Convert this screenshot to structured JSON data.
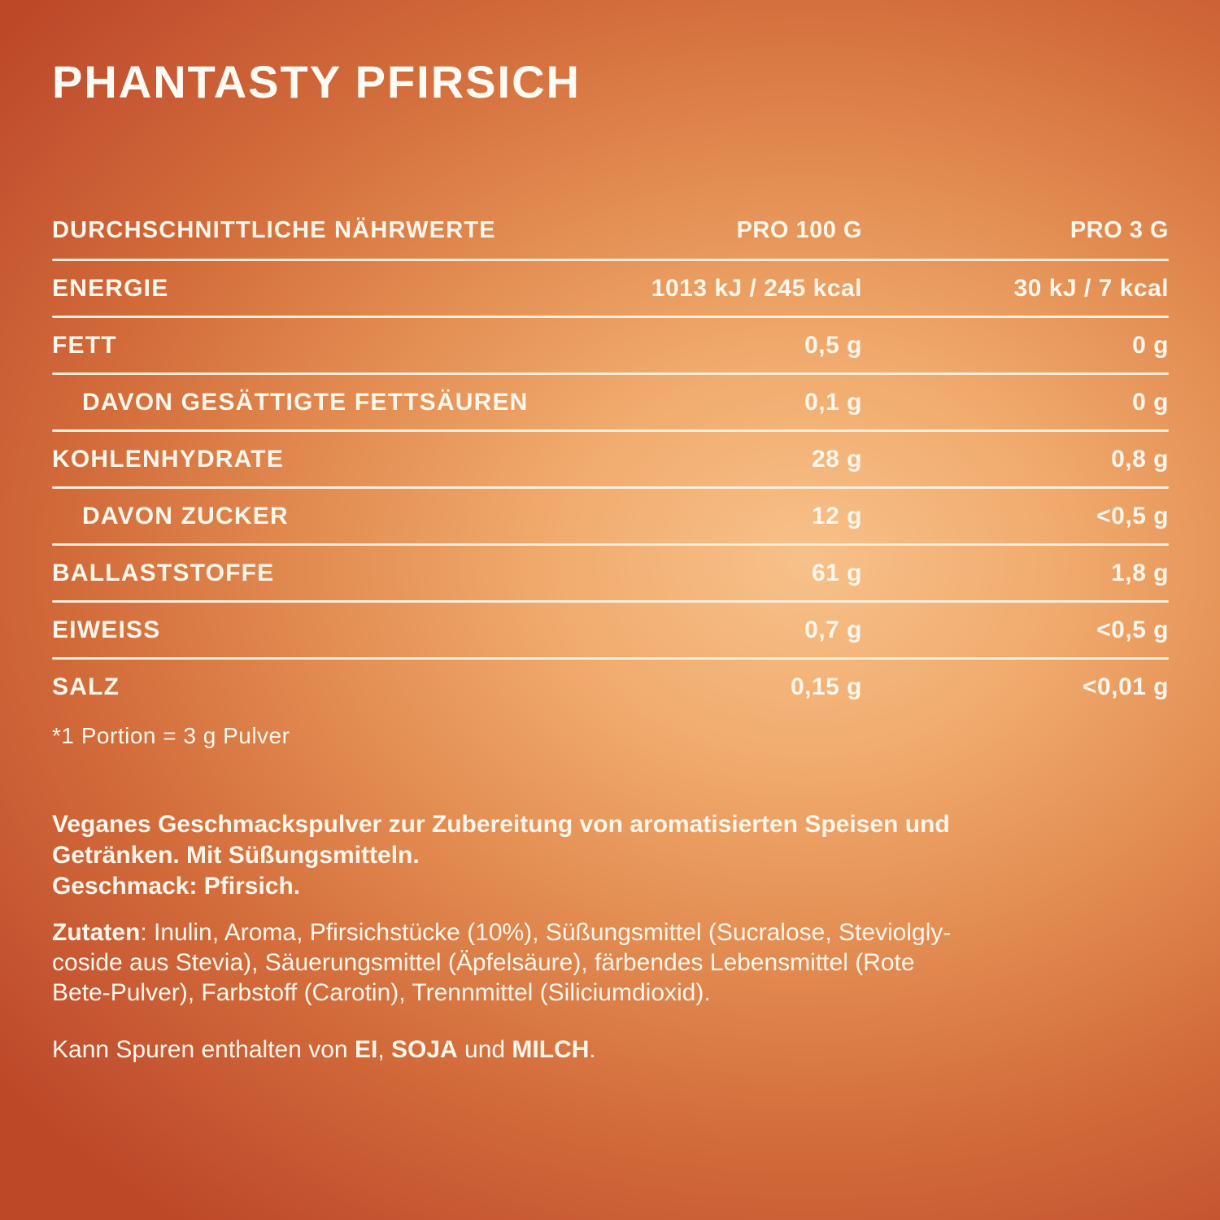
{
  "page": {
    "title": "PHANTASTY PFIRSICH"
  },
  "colors": {
    "background_center": "#F7C189",
    "background_edge": "#BC4828",
    "text": "#FCF6EB",
    "divider": "#F6EEDC"
  },
  "nutrition_table": {
    "columns": [
      "DURCHSCHNITTLICHE NÄHRWERTE",
      "PRO 100 G",
      "PRO 3 G"
    ],
    "rows": [
      {
        "label": "ENERGIE",
        "indent": false,
        "per_100g": "1013 kJ / 245 kcal",
        "per_3g": "30 kJ / 7 kcal"
      },
      {
        "label": "FETT",
        "indent": false,
        "per_100g": "0,5 g",
        "per_3g": "0 g"
      },
      {
        "label": "DAVON GESÄTTIGTE FETTSÄUREN",
        "indent": true,
        "per_100g": "0,1 g",
        "per_3g": "0 g"
      },
      {
        "label": "KOHLENHYDRATE",
        "indent": false,
        "per_100g": "28 g",
        "per_3g": "0,8 g"
      },
      {
        "label": "DAVON ZUCKER",
        "indent": true,
        "per_100g": "12 g",
        "per_3g": "<0,5 g"
      },
      {
        "label": "BALLASTSTOFFE",
        "indent": false,
        "per_100g": "61 g",
        "per_3g": "1,8 g"
      },
      {
        "label": "EIWEISS",
        "indent": false,
        "per_100g": "0,7 g",
        "per_3g": "<0,5 g"
      },
      {
        "label": "SALZ",
        "indent": false,
        "per_100g": "0,15 g",
        "per_3g": "<0,01 g"
      }
    ],
    "footnote": "*1 Portion = 3 g Pulver"
  },
  "description": {
    "line1": "Veganes Geschmackspulver zur Zubereitung von aromatisierten Speisen und",
    "line2": "Getränken. Mit Süßungsmitteln.",
    "line3": "Geschmack: Pfirsich."
  },
  "ingredients": {
    "lead": "Zutaten",
    "line1_rest": ": Inulin, Aroma, Pfirsichstücke (10%), Süßungsmittel (Sucralose, Steviolgly-",
    "line2": "coside aus Stevia), Säuerungsmittel (Äpfelsäure), färbendes Lebensmittel (Rote",
    "line3": "Bete-Pulver), Farbstoff (Carotin), Trennmittel (Siliciumdioxid)."
  },
  "allergens": {
    "part1": "Kann Spuren enthalten von ",
    "allergen1": "EI",
    "sep1": ", ",
    "allergen2": "SOJA",
    "sep2": " und ",
    "allergen3": "MILCH",
    "end": "."
  }
}
